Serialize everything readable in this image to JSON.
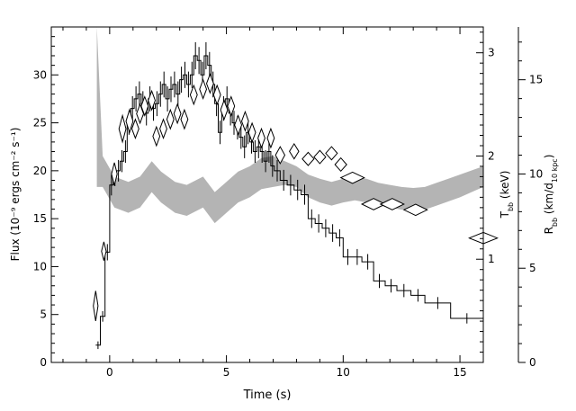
{
  "chart_data": {
    "type": "line",
    "title": "",
    "xlabel": "Time (s)",
    "ylabel_left": "Flux (10⁻⁹ ergs cm⁻² s⁻¹)",
    "ylabel_t": "T_bb (keV)",
    "ylabel_r": "R_bb (km/d_10 kpc)",
    "xlim": [
      -2.5,
      16
    ],
    "ylim_flux": [
      0,
      35
    ],
    "ylim_t": [
      0,
      3.25
    ],
    "ylim_r": [
      0,
      17.8
    ],
    "x_ticks": [
      0,
      5,
      10,
      15
    ],
    "flux_ticks": [
      0,
      5,
      10,
      15,
      20,
      25,
      30
    ],
    "t_ticks": [
      1,
      2,
      3
    ],
    "r_ticks": [
      0,
      5,
      10,
      15
    ],
    "series": [
      {
        "style": "histogram",
        "edges": [
          -0.6,
          -0.4,
          -0.2,
          0.0,
          0.15,
          0.3,
          0.45,
          0.6,
          0.75,
          0.9,
          1.05,
          1.2,
          1.35,
          1.5,
          1.65,
          1.8,
          1.95,
          2.1,
          2.25,
          2.4,
          2.55,
          2.7,
          2.85,
          3.0,
          3.15,
          3.3,
          3.45,
          3.6,
          3.75,
          3.9,
          4.05,
          4.2,
          4.35,
          4.5,
          4.65,
          4.8,
          4.95,
          5.1,
          5.25,
          5.4,
          5.55,
          5.7,
          5.85,
          6.0,
          6.15,
          6.3,
          6.45,
          6.6,
          6.75,
          6.9,
          7.05,
          7.3,
          7.6,
          7.9,
          8.2,
          8.5,
          8.8,
          9.1,
          9.4,
          9.7,
          10.0,
          10.4,
          10.8,
          11.3,
          11.8,
          12.3,
          12.9,
          13.5,
          14.6,
          16.0
        ],
        "values": [
          1.8,
          4.8,
          11.5,
          18.5,
          19.5,
          20.0,
          21.0,
          22.0,
          25.0,
          26.5,
          27.5,
          28.0,
          27.0,
          26.0,
          27.5,
          26.5,
          27.0,
          28.0,
          29.0,
          27.5,
          28.5,
          29.0,
          28.0,
          29.5,
          30.0,
          29.0,
          30.0,
          32.0,
          31.5,
          30.0,
          32.0,
          31.0,
          29.0,
          27.0,
          24.0,
          26.5,
          27.5,
          26.0,
          25.0,
          24.5,
          23.5,
          22.5,
          24.0,
          23.0,
          22.0,
          22.5,
          22.0,
          21.0,
          22.0,
          20.5,
          20.0,
          19.0,
          18.5,
          18.0,
          17.5,
          15.0,
          14.5,
          14.0,
          13.5,
          13.0,
          11.0,
          11.0,
          10.5,
          8.5,
          8.0,
          7.5,
          7.0,
          6.2,
          4.6
        ]
      },
      {
        "style": "band",
        "axis": "kT",
        "x": [
          -0.55,
          -0.3,
          0.2,
          0.8,
          1.3,
          1.8,
          2.2,
          2.8,
          3.3,
          4.0,
          4.5,
          5.0,
          5.5,
          6.0,
          6.5,
          7.0,
          7.5,
          8.0,
          8.5,
          9.0,
          9.5,
          10.0,
          10.5,
          11.0,
          11.5,
          12.0,
          12.5,
          13.0,
          13.5,
          14.0,
          14.5,
          15.0,
          15.5,
          16.0
        ],
        "y_low": [
          1.7,
          1.7,
          1.5,
          1.45,
          1.5,
          1.65,
          1.55,
          1.45,
          1.42,
          1.5,
          1.35,
          1.45,
          1.55,
          1.6,
          1.68,
          1.7,
          1.72,
          1.7,
          1.6,
          1.55,
          1.52,
          1.55,
          1.57,
          1.55,
          1.52,
          1.5,
          1.48,
          1.47,
          1.48,
          1.52,
          1.56,
          1.6,
          1.65,
          1.7
        ],
        "y_high": [
          3.25,
          2.0,
          1.8,
          1.75,
          1.8,
          1.95,
          1.85,
          1.75,
          1.72,
          1.8,
          1.65,
          1.75,
          1.85,
          1.9,
          1.98,
          2.0,
          1.95,
          1.9,
          1.82,
          1.78,
          1.75,
          1.78,
          1.8,
          1.78,
          1.74,
          1.72,
          1.7,
          1.69,
          1.7,
          1.74,
          1.78,
          1.82,
          1.86,
          1.9
        ]
      },
      {
        "style": "diamonds",
        "axis": "R",
        "points": [
          [
            -0.6,
            3.0,
            0.1,
            0.8
          ],
          [
            -0.25,
            5.9,
            0.1,
            0.5
          ],
          [
            0.2,
            10.0,
            0.12,
            0.6
          ],
          [
            0.55,
            12.4,
            0.15,
            0.7
          ],
          [
            0.85,
            12.8,
            0.15,
            0.6
          ],
          [
            1.1,
            12.4,
            0.15,
            0.5
          ],
          [
            1.3,
            13.2,
            0.15,
            0.5
          ],
          [
            1.5,
            13.6,
            0.15,
            0.5
          ],
          [
            1.8,
            13.9,
            0.15,
            0.5
          ],
          [
            2.0,
            12.0,
            0.15,
            0.5
          ],
          [
            2.3,
            12.4,
            0.15,
            0.5
          ],
          [
            2.6,
            12.9,
            0.15,
            0.5
          ],
          [
            2.9,
            13.2,
            0.15,
            0.5
          ],
          [
            3.2,
            12.9,
            0.15,
            0.5
          ],
          [
            3.6,
            14.2,
            0.15,
            0.5
          ],
          [
            4.0,
            14.5,
            0.15,
            0.5
          ],
          [
            4.3,
            14.8,
            0.15,
            0.5
          ],
          [
            4.6,
            14.2,
            0.15,
            0.5
          ],
          [
            4.9,
            13.4,
            0.15,
            0.5
          ],
          [
            5.2,
            13.6,
            0.15,
            0.5
          ],
          [
            5.5,
            12.6,
            0.15,
            0.5
          ],
          [
            5.8,
            12.8,
            0.15,
            0.5
          ],
          [
            6.1,
            12.2,
            0.15,
            0.5
          ],
          [
            6.5,
            11.9,
            0.15,
            0.5
          ],
          [
            6.9,
            11.9,
            0.15,
            0.5
          ],
          [
            7.3,
            11.0,
            0.2,
            0.45
          ],
          [
            7.9,
            11.2,
            0.2,
            0.4
          ],
          [
            8.5,
            10.8,
            0.25,
            0.35
          ],
          [
            9.0,
            10.9,
            0.25,
            0.35
          ],
          [
            9.5,
            11.1,
            0.25,
            0.35
          ],
          [
            9.9,
            10.5,
            0.25,
            0.35
          ],
          [
            10.4,
            9.8,
            0.5,
            0.3
          ],
          [
            11.3,
            8.4,
            0.5,
            0.3
          ],
          [
            12.1,
            8.4,
            0.5,
            0.3
          ],
          [
            13.1,
            8.1,
            0.5,
            0.3
          ],
          [
            16.0,
            6.6,
            0.6,
            0.3
          ]
        ]
      }
    ]
  }
}
